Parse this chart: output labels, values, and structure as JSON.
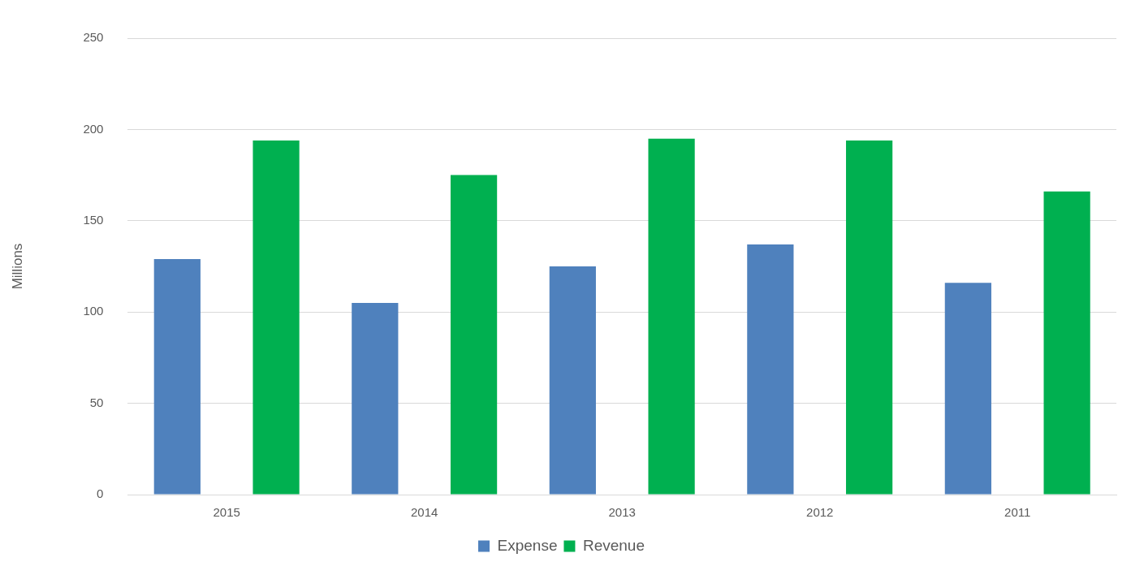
{
  "chart_data": {
    "type": "bar",
    "ylabel": "Millions",
    "categories": [
      "2015",
      "2014",
      "2013",
      "2012",
      "2011"
    ],
    "series": [
      {
        "name": "Expense",
        "color": "#4f81bd",
        "values": [
          129,
          105,
          125,
          137,
          116
        ]
      },
      {
        "name": "Revenue",
        "color": "#00b050",
        "values": [
          194,
          175,
          195,
          194,
          166
        ]
      }
    ],
    "ylim": [
      0,
      250
    ],
    "yticks": [
      0,
      50,
      100,
      150,
      200,
      250
    ],
    "grid": "y",
    "legend": "bottom"
  }
}
